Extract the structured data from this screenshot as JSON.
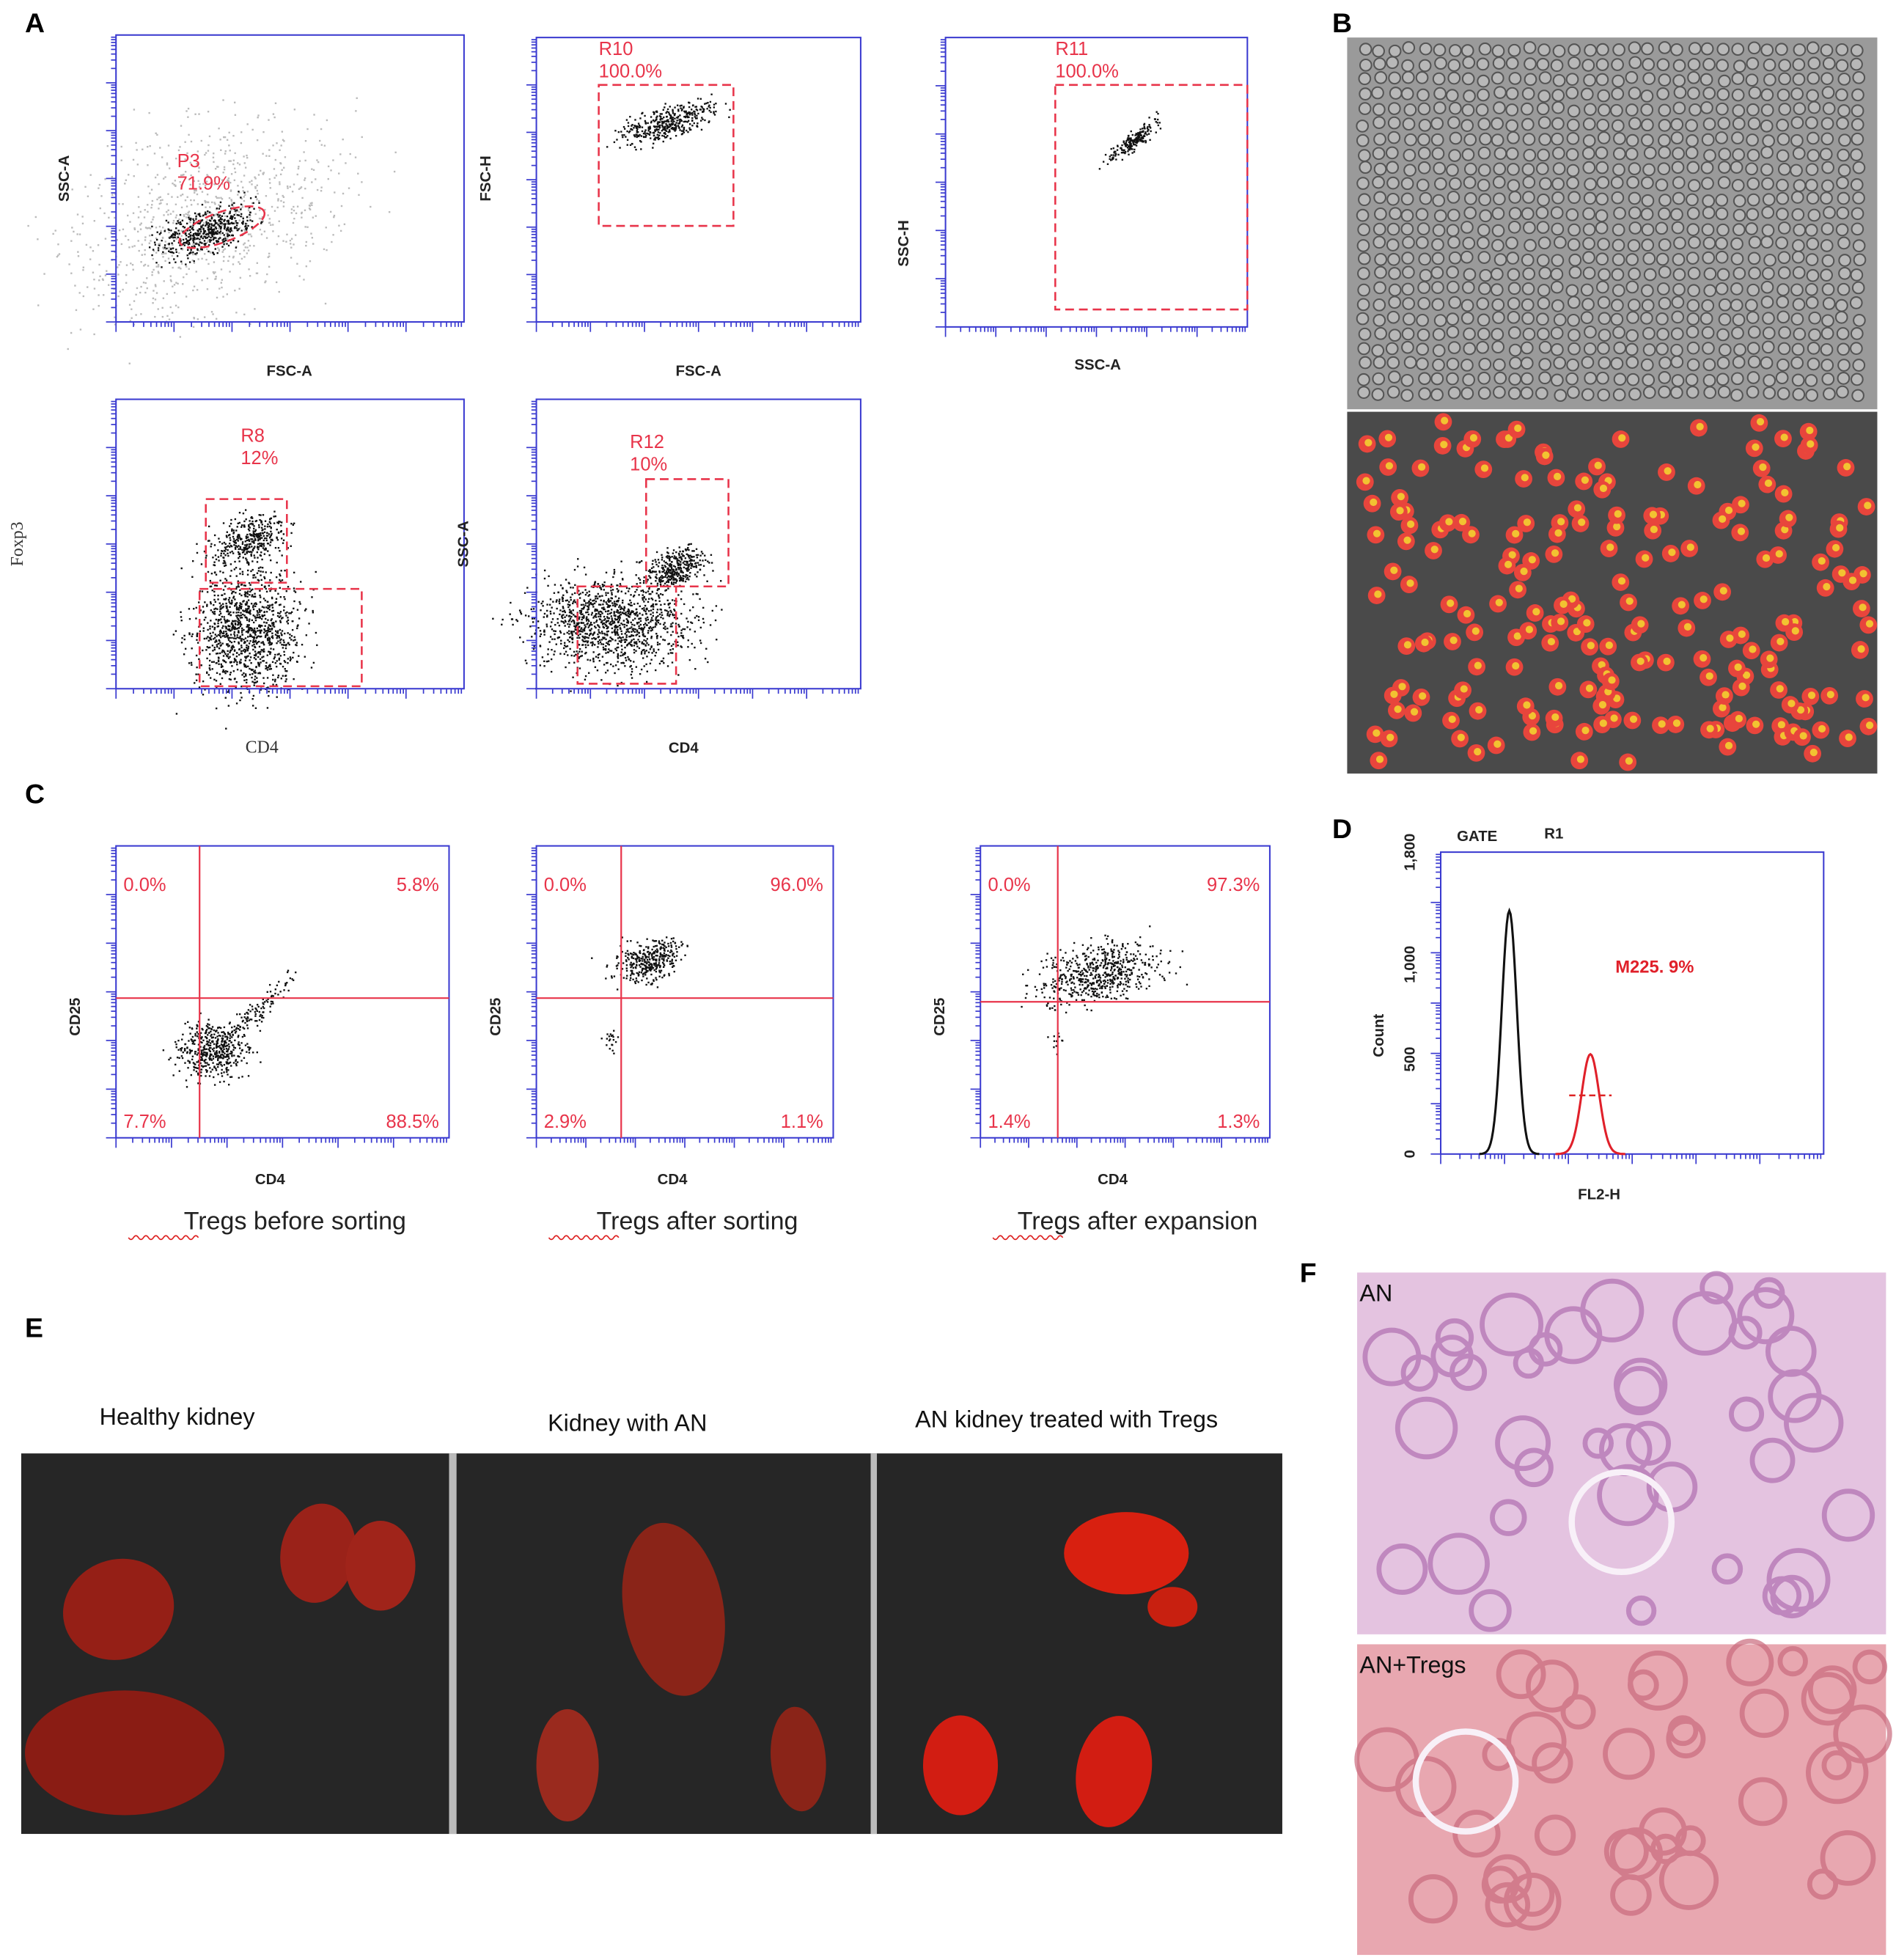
{
  "panels": {
    "A": {
      "label": "A",
      "plots": [
        {
          "x_label": "FSC-A",
          "y_label": "SSC-A",
          "gate": "P3",
          "percent": "71.9%"
        },
        {
          "x_label": "FSC-A",
          "y_label": "FSC-H",
          "gate": "R10",
          "percent": "100.0%"
        },
        {
          "x_label": "SSC-A",
          "y_label": "SSC-H",
          "gate": "R11",
          "percent": "100.0%"
        },
        {
          "x_label": "CD4",
          "y_label": "Foxp3",
          "gate": "R8",
          "percent": "12%"
        },
        {
          "x_label": "CD4",
          "y_label": "SSC-A",
          "gate": "R12",
          "percent": "10%"
        }
      ]
    },
    "B": {
      "label": "B"
    },
    "C": {
      "label": "C",
      "plots": [
        {
          "x_label": "CD4",
          "y_label": "CD25",
          "quadrants": [
            "0.0%",
            "5.8%",
            "7.7%",
            "88.5%"
          ],
          "caption": "Tregs before sorting"
        },
        {
          "x_label": "CD4",
          "y_label": "CD25",
          "quadrants": [
            "0.0%",
            "96.0%",
            "2.9%",
            "1.1%"
          ],
          "caption": "Tregs after sorting"
        },
        {
          "x_label": "CD4",
          "y_label": "CD25",
          "quadrants": [
            "0.0%",
            "97.3%",
            "1.4%",
            "1.3%"
          ],
          "caption": "Tregs after expansion"
        }
      ]
    },
    "D": {
      "label": "D",
      "gate": "GATE",
      "gate_name": "R1",
      "marker": "M225. 9%",
      "x_label": "FL2-H",
      "y_label": "Count",
      "yticks": [
        "1,800",
        "1,000",
        "500",
        "0"
      ]
    },
    "E": {
      "label": "E",
      "captions": [
        "Healthy kidney",
        "Kidney with AN",
        "AN kidney treated with Tregs"
      ]
    },
    "F": {
      "label": "F",
      "images": [
        "AN",
        "AN+Tregs"
      ]
    }
  }
}
